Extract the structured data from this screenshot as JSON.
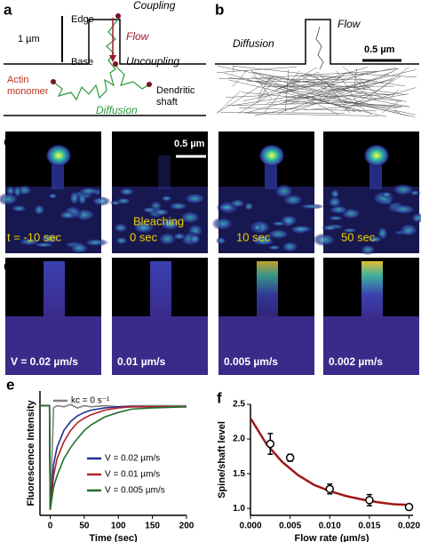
{
  "panel_a": {
    "label": "a",
    "edge": "Edge",
    "base": "Base",
    "scale": "1 µm",
    "coupling": "Coupling",
    "flow": "Flow",
    "uncoupling": "Uncoupling",
    "actin": [
      "Actin",
      "monomer"
    ],
    "shaft": [
      "Dendritic",
      "shaft"
    ],
    "diffusion": "Diffusion"
  },
  "panel_b": {
    "label": "b",
    "flow": "Flow",
    "diffusion": "Diffusion",
    "scale": "0.5 µm"
  },
  "panel_c": {
    "label": "c",
    "scale": "0.5 µm",
    "frames": [
      "t = -10 sec",
      "0 sec",
      "10 sec",
      "50 sec"
    ],
    "bleaching": "Bleaching"
  },
  "panel_d": {
    "label": "d",
    "frames": [
      "V = 0.02 µm/s",
      "0.01 µm/s",
      "0.005 µm/s",
      "0.002 µm/s"
    ]
  },
  "chart_data": [
    {
      "type": "line",
      "label": "e",
      "xlabel": "Time (sec)",
      "ylabel": "Fluorescence Intensity",
      "x": [
        -15,
        -1,
        0,
        5,
        10,
        20,
        30,
        40,
        50,
        60,
        80,
        100,
        120,
        150,
        200
      ],
      "series": [
        {
          "name": "kc = 0 s⁻¹",
          "color": "#808080",
          "values": [
            0.97,
            0.97,
            0.05,
            0.95,
            0.97,
            0.96,
            0.98,
            0.95,
            0.97,
            0.96,
            0.97,
            0.96,
            0.97,
            0.97,
            0.97
          ]
        },
        {
          "name": "V = 0.02 µm/s",
          "color": "#1f2f8f",
          "values": [
            0.97,
            0.97,
            0.05,
            0.45,
            0.6,
            0.75,
            0.83,
            0.88,
            0.91,
            0.93,
            0.95,
            0.96,
            0.96,
            0.96,
            0.96
          ]
        },
        {
          "name": "V = 0.01 µm/s",
          "color": "#b0202a",
          "values": [
            0.97,
            0.97,
            0.05,
            0.35,
            0.5,
            0.65,
            0.75,
            0.82,
            0.86,
            0.89,
            0.93,
            0.95,
            0.96,
            0.96,
            0.96
          ]
        },
        {
          "name": "V = 0.005 µm/s",
          "color": "#1f6e2a",
          "values": [
            0.97,
            0.97,
            0.05,
            0.25,
            0.35,
            0.5,
            0.6,
            0.68,
            0.75,
            0.8,
            0.87,
            0.91,
            0.94,
            0.95,
            0.96
          ]
        }
      ],
      "xlim": [
        -15,
        200
      ],
      "xticks": [
        0,
        50,
        100,
        150,
        200
      ],
      "ylim": [
        0,
        1.1
      ]
    },
    {
      "type": "scatter",
      "label": "f",
      "xlabel": "Flow rate (µm/s)",
      "ylabel": "Spine/shaft level",
      "x": [
        0.0025,
        0.005,
        0.01,
        0.015,
        0.02
      ],
      "values": [
        1.93,
        1.73,
        1.28,
        1.12,
        1.02
      ],
      "errors": [
        0.15,
        0.05,
        0.07,
        0.08,
        0.03
      ],
      "color": "#000000",
      "fit": {
        "x": [
          0,
          0.002,
          0.004,
          0.006,
          0.008,
          0.01,
          0.012,
          0.014,
          0.016,
          0.018,
          0.02
        ],
        "values": [
          2.3,
          1.93,
          1.67,
          1.48,
          1.34,
          1.25,
          1.18,
          1.13,
          1.09,
          1.06,
          1.05
        ],
        "color": "#a01818"
      },
      "xlim": [
        0,
        0.0205
      ],
      "xticks": [
        {
          "value": 0,
          "label": "0.000"
        },
        {
          "value": 0.005,
          "label": "0.005"
        },
        {
          "value": 0.01,
          "label": "0.010"
        },
        {
          "value": 0.015,
          "label": "0.015"
        },
        {
          "value": 0.02,
          "label": "0.020"
        }
      ],
      "ylim": [
        0.9,
        2.5
      ],
      "yticks": [
        {
          "value": 1,
          "label": "1.0"
        },
        1.5,
        {
          "value": 2,
          "label": "2.0"
        },
        2.5
      ]
    }
  ]
}
